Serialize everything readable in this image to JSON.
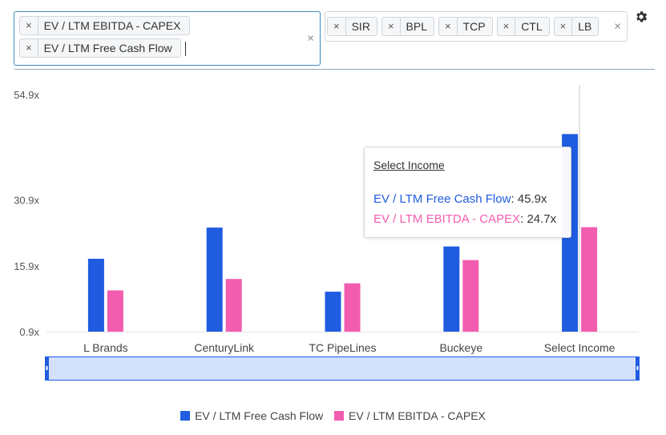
{
  "metric_selector": {
    "tags": [
      {
        "label": "EV / LTM EBITDA - CAPEX"
      },
      {
        "label": "EV / LTM Free Cash Flow"
      }
    ],
    "remove_glyph": "×",
    "clear_glyph": "×"
  },
  "ticker_selector": {
    "tags": [
      {
        "label": "SIR"
      },
      {
        "label": "BPL"
      },
      {
        "label": "TCP"
      },
      {
        "label": "CTL"
      },
      {
        "label": "LB"
      }
    ],
    "remove_glyph": "×",
    "clear_glyph": "×"
  },
  "settings_icon": "gear-icon",
  "colors": {
    "series_1": "#1f5ce0",
    "series_2": "#f25db0",
    "navigator_fill": "#d3e1fb",
    "navigator_border": "#1f5ce0"
  },
  "tooltip": {
    "title": "Select Income",
    "rows": [
      {
        "name": "EV / LTM Free Cash Flow",
        "value": "45.9x"
      },
      {
        "name": "EV / LTM EBITDA - CAPEX",
        "value": "24.7x"
      }
    ]
  },
  "chart_data": {
    "type": "bar",
    "categories": [
      "L Brands",
      "CenturyLink",
      "TC PipeLines",
      "Buckeye",
      "Select Income"
    ],
    "series": [
      {
        "name": "EV / LTM Free Cash Flow",
        "values": [
          17.5,
          24.6,
          10.0,
          20.3,
          45.9
        ]
      },
      {
        "name": "EV / LTM EBITDA - CAPEX",
        "values": [
          10.3,
          12.9,
          11.9,
          17.2,
          24.7
        ]
      }
    ],
    "y_ticks": [
      "54.9x",
      "30.9x",
      "15.9x",
      "0.9x"
    ],
    "y_tick_values": [
      54.9,
      30.9,
      15.9,
      0.9
    ],
    "ylim": [
      0.9,
      54.9
    ],
    "highlighted_category": "Select Income",
    "legend_position": "bottom-center",
    "grid": false,
    "title": "",
    "xlabel": "",
    "ylabel": ""
  }
}
